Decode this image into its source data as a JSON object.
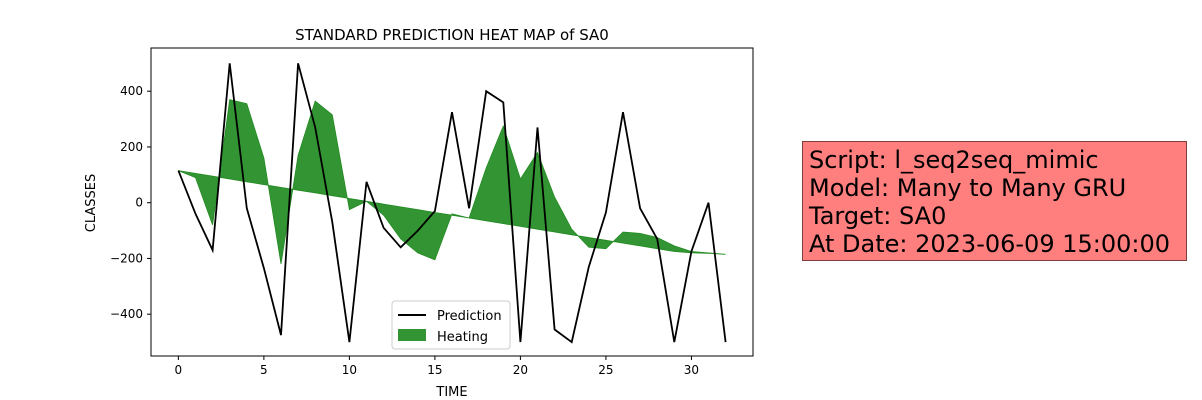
{
  "chart_data": {
    "type": "line",
    "title": "STANDARD PREDICTION HEAT MAP of SA0",
    "xlabel": "TIME",
    "ylabel": "CLASSES",
    "xlim": [
      -1.6,
      33.6
    ],
    "ylim": [
      -550,
      555
    ],
    "xticks": [
      0,
      5,
      10,
      15,
      20,
      25,
      30
    ],
    "yticks": [
      -400,
      -200,
      0,
      200,
      400
    ],
    "legend_position": "lower-center",
    "grid": false,
    "x": [
      0,
      1,
      2,
      3,
      4,
      5,
      6,
      7,
      8,
      9,
      10,
      11,
      12,
      13,
      14,
      15,
      16,
      17,
      18,
      19,
      20,
      21,
      22,
      23,
      24,
      25,
      26,
      27,
      28,
      29,
      30,
      31,
      32
    ],
    "series": [
      {
        "name": "Prediction",
        "kind": "line",
        "color": "#000000",
        "values": [
          115,
          -40,
          -170,
          500,
          -20,
          -235,
          -475,
          500,
          270,
          -70,
          -500,
          75,
          -90,
          -160,
          -100,
          -30,
          325,
          -20,
          400,
          360,
          -500,
          270,
          -455,
          -500,
          -230,
          -35,
          325,
          -20,
          -130,
          -500,
          -175,
          0,
          -500
        ]
      },
      {
        "name": "Heating",
        "kind": "fill",
        "color": "#228B22",
        "baseline": [
          115,
          105,
          95,
          85,
          75,
          65,
          55,
          45,
          35,
          25,
          15,
          5,
          -5,
          -15,
          -25,
          -35,
          -45,
          -55,
          -65,
          -75,
          -85,
          -95,
          -105,
          -115,
          -125,
          -135,
          -145,
          -155,
          -165,
          -175,
          -180,
          -182,
          -185
        ],
        "values": [
          115,
          90,
          -80,
          370,
          355,
          160,
          -220,
          170,
          365,
          315,
          -25,
          5,
          -45,
          -130,
          -180,
          -205,
          -40,
          -55,
          125,
          275,
          85,
          180,
          20,
          -95,
          -160,
          -165,
          -105,
          -110,
          -125,
          -155,
          -175,
          -180,
          -185
        ]
      }
    ]
  },
  "info_box": {
    "line1": "Script: l_seq2seq_mimic",
    "line2": "Model: Many to Many GRU",
    "line3": "Target: SA0",
    "line4": "At Date: 2023-06-09 15:00:00",
    "background": "#ff7f7f"
  }
}
